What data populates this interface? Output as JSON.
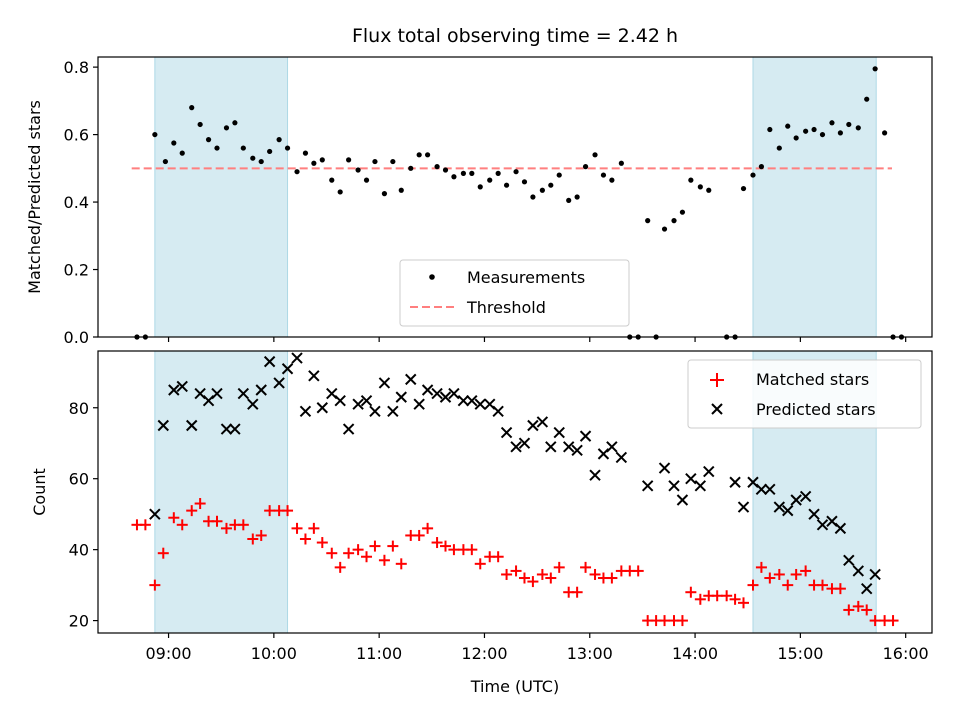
{
  "chart_data": {
    "title": "Flux total observing time = 2.42 h",
    "xlabel": "Time (UTC)",
    "x_tick_labels": [
      "09:00",
      "10:00",
      "11:00",
      "12:00",
      "13:00",
      "14:00",
      "15:00",
      "16:00"
    ],
    "x_ticks_hours": [
      9,
      10,
      11,
      12,
      13,
      14,
      15,
      16
    ],
    "xlim_hours": [
      8.33,
      16.25
    ],
    "shaded_intervals_hours": [
      [
        8.87,
        10.13
      ],
      [
        14.55,
        15.72
      ]
    ],
    "colors": {
      "shade": "#add8e6",
      "threshold": "#ff7f7f",
      "matched": "#ff0000",
      "predicted": "#000000",
      "measurements": "#000000"
    },
    "top": {
      "type": "scatter",
      "ylabel": "Matched/Predicted stars",
      "ylim": [
        0,
        0.83
      ],
      "y_ticks": [
        0.0,
        0.2,
        0.4,
        0.6,
        0.8
      ],
      "y_tick_labels": [
        "0.0",
        "0.2",
        "0.4",
        "0.6",
        "0.8"
      ],
      "legend_position": "lower-center",
      "legend": {
        "measurements": "Measurements",
        "threshold": "Threshold"
      },
      "threshold": {
        "value": 0.5,
        "x_range": [
          8.65,
          15.87
        ]
      },
      "measurements": [
        [
          8.7,
          0
        ],
        [
          8.78,
          0
        ],
        [
          8.87,
          0.6
        ],
        [
          8.97,
          0.52
        ],
        [
          9.05,
          0.575
        ],
        [
          9.13,
          0.545
        ],
        [
          9.22,
          0.68
        ],
        [
          9.3,
          0.63
        ],
        [
          9.38,
          0.585
        ],
        [
          9.46,
          0.56
        ],
        [
          9.55,
          0.62
        ],
        [
          9.63,
          0.635
        ],
        [
          9.71,
          0.56
        ],
        [
          9.8,
          0.53
        ],
        [
          9.88,
          0.52
        ],
        [
          9.96,
          0.55
        ],
        [
          10.05,
          0.585
        ],
        [
          10.13,
          0.56
        ],
        [
          10.22,
          0.49
        ],
        [
          10.3,
          0.545
        ],
        [
          10.38,
          0.515
        ],
        [
          10.46,
          0.525
        ],
        [
          10.55,
          0.465
        ],
        [
          10.63,
          0.43
        ],
        [
          10.71,
          0.525
        ],
        [
          10.8,
          0.495
        ],
        [
          10.88,
          0.465
        ],
        [
          10.96,
          0.52
        ],
        [
          11.05,
          0.425
        ],
        [
          11.13,
          0.52
        ],
        [
          11.21,
          0.435
        ],
        [
          11.3,
          0.5
        ],
        [
          11.38,
          0.54
        ],
        [
          11.46,
          0.54
        ],
        [
          11.55,
          0.505
        ],
        [
          11.63,
          0.495
        ],
        [
          11.71,
          0.475
        ],
        [
          11.8,
          0.485
        ],
        [
          11.88,
          0.485
        ],
        [
          11.96,
          0.445
        ],
        [
          12.05,
          0.465
        ],
        [
          12.13,
          0.485
        ],
        [
          12.21,
          0.45
        ],
        [
          12.3,
          0.49
        ],
        [
          12.38,
          0.46
        ],
        [
          12.46,
          0.415
        ],
        [
          12.55,
          0.435
        ],
        [
          12.63,
          0.45
        ],
        [
          12.71,
          0.48
        ],
        [
          12.8,
          0.405
        ],
        [
          12.88,
          0.415
        ],
        [
          12.96,
          0.505
        ],
        [
          13.05,
          0.54
        ],
        [
          13.13,
          0.48
        ],
        [
          13.21,
          0.465
        ],
        [
          13.3,
          0.515
        ],
        [
          13.38,
          0
        ],
        [
          13.46,
          0
        ],
        [
          13.55,
          0.345
        ],
        [
          13.63,
          0
        ],
        [
          13.71,
          0.32
        ],
        [
          13.8,
          0.345
        ],
        [
          13.88,
          0.37
        ],
        [
          13.96,
          0.465
        ],
        [
          14.05,
          0.445
        ],
        [
          14.13,
          0.435
        ],
        [
          14.3,
          0
        ],
        [
          14.38,
          0
        ],
        [
          14.46,
          0.44
        ],
        [
          14.55,
          0.48
        ],
        [
          14.63,
          0.505
        ],
        [
          14.71,
          0.615
        ],
        [
          14.8,
          0.56
        ],
        [
          14.88,
          0.625
        ],
        [
          14.96,
          0.59
        ],
        [
          15.05,
          0.61
        ],
        [
          15.13,
          0.615
        ],
        [
          15.21,
          0.6
        ],
        [
          15.3,
          0.635
        ],
        [
          15.38,
          0.605
        ],
        [
          15.46,
          0.63
        ],
        [
          15.55,
          0.62
        ],
        [
          15.63,
          0.705
        ],
        [
          15.71,
          0.795
        ],
        [
          15.8,
          0.605
        ],
        [
          15.88,
          0
        ],
        [
          15.96,
          0
        ]
      ]
    },
    "bottom": {
      "type": "scatter",
      "ylabel": "Count",
      "ylim": [
        16.5,
        96
      ],
      "y_ticks": [
        20,
        40,
        60,
        80
      ],
      "y_tick_labels": [
        "20",
        "40",
        "60",
        "80"
      ],
      "legend_position": "top-right",
      "series": [
        {
          "name": "Matched stars",
          "marker": "plus",
          "points": [
            [
              8.7,
              47
            ],
            [
              8.78,
              47
            ],
            [
              8.87,
              30
            ],
            [
              8.95,
              39
            ],
            [
              9.05,
              49
            ],
            [
              9.13,
              47
            ],
            [
              9.22,
              51
            ],
            [
              9.3,
              53
            ],
            [
              9.38,
              48
            ],
            [
              9.46,
              48
            ],
            [
              9.55,
              46
            ],
            [
              9.63,
              47
            ],
            [
              9.71,
              47
            ],
            [
              9.8,
              43
            ],
            [
              9.88,
              44
            ],
            [
              9.96,
              51
            ],
            [
              10.05,
              51
            ],
            [
              10.13,
              51
            ],
            [
              10.22,
              46
            ],
            [
              10.3,
              43
            ],
            [
              10.38,
              46
            ],
            [
              10.46,
              42
            ],
            [
              10.55,
              39
            ],
            [
              10.63,
              35
            ],
            [
              10.71,
              39
            ],
            [
              10.8,
              40
            ],
            [
              10.88,
              38
            ],
            [
              10.96,
              41
            ],
            [
              11.05,
              37
            ],
            [
              11.13,
              41
            ],
            [
              11.21,
              36
            ],
            [
              11.3,
              44
            ],
            [
              11.38,
              44
            ],
            [
              11.46,
              46
            ],
            [
              11.55,
              42
            ],
            [
              11.63,
              41
            ],
            [
              11.71,
              40
            ],
            [
              11.8,
              40
            ],
            [
              11.88,
              40
            ],
            [
              11.96,
              36
            ],
            [
              12.05,
              38
            ],
            [
              12.13,
              38
            ],
            [
              12.21,
              33
            ],
            [
              12.3,
              34
            ],
            [
              12.38,
              32
            ],
            [
              12.46,
              31
            ],
            [
              12.55,
              33
            ],
            [
              12.63,
              32
            ],
            [
              12.71,
              35
            ],
            [
              12.8,
              28
            ],
            [
              12.88,
              28
            ],
            [
              12.96,
              35
            ],
            [
              13.05,
              33
            ],
            [
              13.13,
              32
            ],
            [
              13.21,
              32
            ],
            [
              13.3,
              34
            ],
            [
              13.38,
              34
            ],
            [
              13.46,
              34
            ],
            [
              13.55,
              20
            ],
            [
              13.63,
              20
            ],
            [
              13.71,
              20
            ],
            [
              13.8,
              20
            ],
            [
              13.88,
              20
            ],
            [
              13.96,
              28
            ],
            [
              14.05,
              26
            ],
            [
              14.13,
              27
            ],
            [
              14.21,
              27
            ],
            [
              14.3,
              27
            ],
            [
              14.38,
              26
            ],
            [
              14.46,
              25
            ],
            [
              14.55,
              30
            ],
            [
              14.63,
              35
            ],
            [
              14.71,
              32
            ],
            [
              14.8,
              33
            ],
            [
              14.88,
              30
            ],
            [
              14.96,
              33
            ],
            [
              15.05,
              34
            ],
            [
              15.13,
              30
            ],
            [
              15.21,
              30
            ],
            [
              15.3,
              29
            ],
            [
              15.38,
              29
            ],
            [
              15.46,
              23
            ],
            [
              15.55,
              24
            ],
            [
              15.63,
              23
            ],
            [
              15.71,
              20
            ],
            [
              15.8,
              20
            ],
            [
              15.88,
              20
            ]
          ]
        },
        {
          "name": "Predicted stars",
          "marker": "x",
          "points": [
            [
              8.87,
              50
            ],
            [
              8.95,
              75
            ],
            [
              9.05,
              85
            ],
            [
              9.13,
              86
            ],
            [
              9.22,
              75
            ],
            [
              9.3,
              84
            ],
            [
              9.38,
              82
            ],
            [
              9.46,
              84
            ],
            [
              9.55,
              74
            ],
            [
              9.63,
              74
            ],
            [
              9.71,
              84
            ],
            [
              9.8,
              81
            ],
            [
              9.88,
              85
            ],
            [
              9.96,
              93
            ],
            [
              10.05,
              87
            ],
            [
              10.13,
              91
            ],
            [
              10.22,
              94
            ],
            [
              10.3,
              79
            ],
            [
              10.38,
              89
            ],
            [
              10.46,
              80
            ],
            [
              10.55,
              84
            ],
            [
              10.63,
              82
            ],
            [
              10.71,
              74
            ],
            [
              10.8,
              81
            ],
            [
              10.88,
              82
            ],
            [
              10.96,
              79
            ],
            [
              11.05,
              87
            ],
            [
              11.13,
              79
            ],
            [
              11.21,
              83
            ],
            [
              11.3,
              88
            ],
            [
              11.38,
              81
            ],
            [
              11.46,
              85
            ],
            [
              11.55,
              84
            ],
            [
              11.63,
              83
            ],
            [
              11.71,
              84
            ],
            [
              11.8,
              82
            ],
            [
              11.88,
              82
            ],
            [
              11.96,
              81
            ],
            [
              12.05,
              81
            ],
            [
              12.13,
              79
            ],
            [
              12.21,
              73
            ],
            [
              12.3,
              69
            ],
            [
              12.38,
              70
            ],
            [
              12.46,
              75
            ],
            [
              12.55,
              76
            ],
            [
              12.63,
              69
            ],
            [
              12.71,
              73
            ],
            [
              12.8,
              69
            ],
            [
              12.88,
              68
            ],
            [
              12.96,
              72
            ],
            [
              13.05,
              61
            ],
            [
              13.13,
              67
            ],
            [
              13.21,
              69
            ],
            [
              13.3,
              66
            ],
            [
              13.55,
              58
            ],
            [
              13.71,
              63
            ],
            [
              13.8,
              58
            ],
            [
              13.88,
              54
            ],
            [
              13.96,
              60
            ],
            [
              14.05,
              58
            ],
            [
              14.13,
              62
            ],
            [
              14.38,
              59
            ],
            [
              14.46,
              52
            ],
            [
              14.55,
              59
            ],
            [
              14.63,
              57
            ],
            [
              14.71,
              57
            ],
            [
              14.8,
              52
            ],
            [
              14.88,
              51
            ],
            [
              14.96,
              54
            ],
            [
              15.05,
              55
            ],
            [
              15.13,
              50
            ],
            [
              15.21,
              47
            ],
            [
              15.3,
              48
            ],
            [
              15.38,
              46
            ],
            [
              15.46,
              37
            ],
            [
              15.55,
              34
            ],
            [
              15.63,
              29
            ],
            [
              15.71,
              33
            ]
          ]
        }
      ]
    }
  }
}
